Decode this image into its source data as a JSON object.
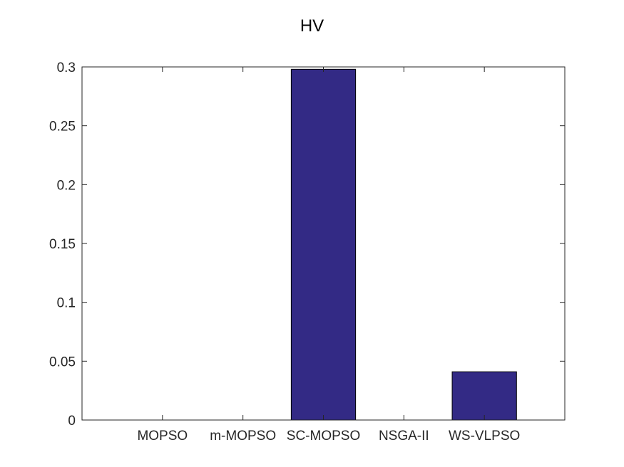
{
  "chart_data": {
    "type": "bar",
    "title": "HV",
    "xlabel": "",
    "ylabel": "",
    "categories": [
      "MOPSO",
      "m-MOPSO",
      "SC-MOPSO",
      "NSGA-II",
      "WS-VLPSO"
    ],
    "values": [
      0,
      0,
      0.298,
      0,
      0.041
    ],
    "ylim": [
      0,
      0.3
    ],
    "yticks": [
      0,
      0.05,
      0.1,
      0.15,
      0.2,
      0.25,
      0.3
    ],
    "ytick_labels": [
      "0",
      "0.05",
      "0.1",
      "0.15",
      "0.2",
      "0.25",
      "0.3"
    ],
    "grid": false,
    "bar_color": "#332a85",
    "edge_color": "#000000",
    "axis_color": "#262626"
  }
}
